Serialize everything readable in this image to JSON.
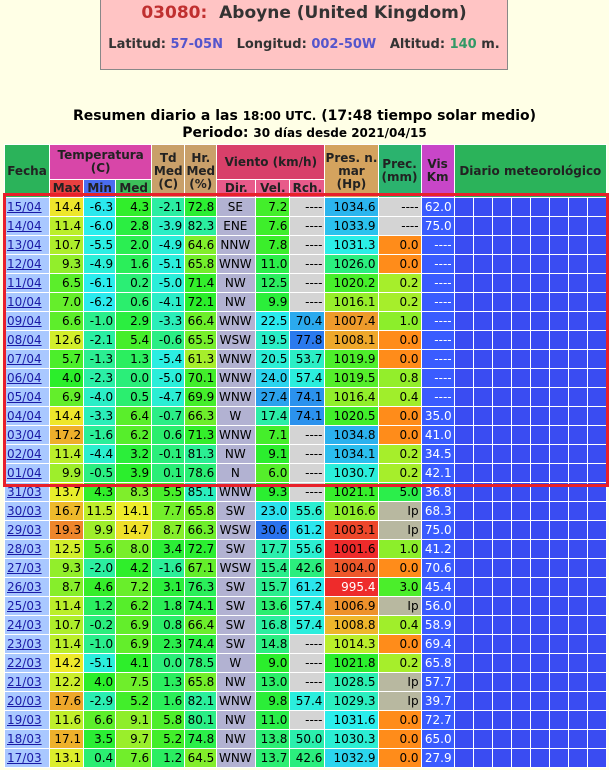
{
  "station": {
    "code": "03080:",
    "name": "Aboyne (United Kingdom)",
    "lat_label": "Latitud:",
    "lat": "57-05N",
    "lon_label": "Longitud:",
    "lon": "002-50W",
    "alt_label": "Altitud:",
    "alt": "140",
    "alt_unit": "m."
  },
  "summary": {
    "line1_a": "Resumen diario a las",
    "time": "18:00 UTC.",
    "line1_b": "(17:48 tiempo solar medio)",
    "line2_a": "Periodo:",
    "period": "30 días desde 2021/04/15"
  },
  "table": {
    "headers": [
      "Fecha",
      "Temperatura (C)",
      "Td Med (C)",
      "Hr. Med (%)",
      "Viento (km/h)",
      "Pres. n. mar (Hp)",
      "Prec. (mm)",
      "Vis Km",
      "Diario meteorológico"
    ],
    "subheaders": [
      "Max",
      "Min",
      "Med",
      "Dir.",
      "Vel.",
      "Rch."
    ],
    "rows": [
      [
        "15/04",
        "14.4",
        "-6.3",
        "4.3",
        "-2.1",
        "72.8",
        "SE",
        "7.2",
        "----",
        "1034.6",
        "----",
        "62.0"
      ],
      [
        "14/04",
        "11.4",
        "-6.0",
        "2.8",
        "-3.9",
        "82.3",
        "ENE",
        "7.6",
        "----",
        "1033.9",
        "----",
        "75.0"
      ],
      [
        "13/04",
        "10.7",
        "-5.5",
        "2.0",
        "-4.9",
        "64.6",
        "NNW",
        "7.8",
        "----",
        "1031.3",
        "0.0",
        "----"
      ],
      [
        "12/04",
        "9.3",
        "-4.9",
        "1.6",
        "-5.1",
        "65.8",
        "WNW",
        "11.0",
        "----",
        "1026.0",
        "0.0",
        "----"
      ],
      [
        "11/04",
        "6.5",
        "-6.1",
        "0.2",
        "-5.0",
        "71.4",
        "NW",
        "12.5",
        "----",
        "1020.2",
        "0.2",
        "----"
      ],
      [
        "10/04",
        "7.0",
        "-6.2",
        "0.6",
        "-4.1",
        "72.1",
        "NW",
        "9.9",
        "----",
        "1016.1",
        "0.2",
        "----"
      ],
      [
        "09/04",
        "6.6",
        "-1.0",
        "2.9",
        "-3.3",
        "66.4",
        "WNW",
        "22.5",
        "70.4",
        "1007.4",
        "1.0",
        "----"
      ],
      [
        "08/04",
        "12.6",
        "-2.1",
        "5.4",
        "-0.6",
        "65.5",
        "WSW",
        "19.5",
        "77.8",
        "1008.1",
        "0.0",
        "----"
      ],
      [
        "07/04",
        "5.7",
        "-1.3",
        "1.3",
        "-5.4",
        "61.3",
        "WNW",
        "20.5",
        "53.7",
        "1019.9",
        "0.0",
        "----"
      ],
      [
        "06/04",
        "4.0",
        "-2.3",
        "0.0",
        "-5.0",
        "70.1",
        "WNW",
        "24.0",
        "57.4",
        "1019.5",
        "0.8",
        "----"
      ],
      [
        "05/04",
        "6.9",
        "-4.0",
        "0.5",
        "-4.7",
        "69.9",
        "WNW",
        "27.4",
        "74.1",
        "1016.4",
        "0.4",
        "----"
      ],
      [
        "04/04",
        "14.4",
        "-3.3",
        "6.4",
        "-0.7",
        "66.3",
        "W",
        "17.4",
        "74.1",
        "1020.5",
        "0.0",
        "35.0"
      ],
      [
        "03/04",
        "17.2",
        "-1.6",
        "6.2",
        "0.6",
        "71.3",
        "WNW",
        "7.1",
        "----",
        "1034.8",
        "0.0",
        "41.0"
      ],
      [
        "02/04",
        "11.4",
        "-4.4",
        "3.2",
        "-0.1",
        "81.3",
        "NW",
        "9.1",
        "----",
        "1034.1",
        "0.2",
        "34.5"
      ],
      [
        "01/04",
        "9.9",
        "-0.5",
        "3.9",
        "0.1",
        "78.6",
        "N",
        "6.0",
        "----",
        "1030.7",
        "0.2",
        "42.1"
      ],
      [
        "31/03",
        "13.7",
        "4.3",
        "8.3",
        "5.5",
        "85.1",
        "WNW",
        "9.3",
        "----",
        "1021.1",
        "5.0",
        "36.8"
      ],
      [
        "30/03",
        "16.7",
        "11.5",
        "14.1",
        "7.7",
        "65.8",
        "SW",
        "23.0",
        "55.6",
        "1016.6",
        "Ip",
        "68.3"
      ],
      [
        "29/03",
        "19.3",
        "9.9",
        "14.7",
        "8.7",
        "66.3",
        "WSW",
        "30.6",
        "61.2",
        "1003.1",
        "Ip",
        "75.0"
      ],
      [
        "28/03",
        "12.5",
        "5.6",
        "8.0",
        "3.4",
        "72.7",
        "SW",
        "17.7",
        "55.6",
        "1001.6",
        "1.0",
        "41.2"
      ],
      [
        "27/03",
        "9.3",
        "-2.0",
        "4.2",
        "-1.6",
        "67.1",
        "WSW",
        "15.4",
        "42.6",
        "1004.0",
        "0.0",
        "70.6"
      ],
      [
        "26/03",
        "8.7",
        "4.6",
        "7.2",
        "3.1",
        "76.3",
        "SW",
        "15.7",
        "61.2",
        "995.4",
        "3.0",
        "45.4"
      ],
      [
        "25/03",
        "11.4",
        "1.2",
        "6.2",
        "1.8",
        "74.1",
        "SW",
        "13.6",
        "57.4",
        "1006.9",
        "Ip",
        "56.0"
      ],
      [
        "24/03",
        "10.7",
        "-0.2",
        "6.9",
        "0.8",
        "66.4",
        "SW",
        "16.8",
        "57.4",
        "1008.8",
        "0.4",
        "58.9"
      ],
      [
        "23/03",
        "11.4",
        "-1.0",
        "6.9",
        "2.3",
        "74.4",
        "SW",
        "14.8",
        "----",
        "1014.3",
        "0.0",
        "69.4"
      ],
      [
        "22/03",
        "14.2",
        "-5.1",
        "4.1",
        "0.0",
        "78.5",
        "W",
        "9.0",
        "----",
        "1021.8",
        "0.2",
        "65.8"
      ],
      [
        "21/03",
        "12.2",
        "4.0",
        "7.5",
        "1.3",
        "65.8",
        "NW",
        "13.0",
        "----",
        "1028.5",
        "Ip",
        "57.7"
      ],
      [
        "20/03",
        "17.6",
        "-2.9",
        "5.2",
        "1.6",
        "82.1",
        "WNW",
        "9.8",
        "57.4",
        "1029.3",
        "Ip",
        "39.7"
      ],
      [
        "19/03",
        "11.6",
        "6.6",
        "9.1",
        "5.8",
        "80.1",
        "NW",
        "11.0",
        "----",
        "1031.6",
        "0.0",
        "72.7"
      ],
      [
        "18/03",
        "17.1",
        "3.5",
        "9.7",
        "5.2",
        "74.8",
        "NW",
        "13.8",
        "50.0",
        "1030.3",
        "0.0",
        "65.0"
      ],
      [
        "17/03",
        "13.1",
        "0.4",
        "7.6",
        "1.2",
        "64.5",
        "WNW",
        "13.7",
        "42.6",
        "1032.9",
        "0.0",
        "27.9"
      ]
    ]
  }
}
